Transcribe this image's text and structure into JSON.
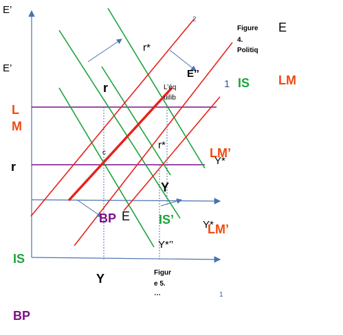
{
  "labels": {
    "e_prime_top": "E’",
    "two": "2",
    "figure4_line1": "Figure",
    "figure4_line2": "4.",
    "figure4_line3": "Politiq",
    "e_top_right": "E",
    "e_prime_mid": "E’",
    "r_star_top": "r*",
    "e_double_prime": "E’’",
    "one_right": "1",
    "is_right": "IS",
    "lm_right": "LM",
    "r_inner": "r",
    "equilibrium_line1": "L’éq",
    "equilibrium_line2": "uilib",
    "lm_left_l": "L",
    "lm_left_m": "M",
    "c_small": "c",
    "r_star_mid": "r*",
    "lm_prime_upper": "LM’",
    "y_star_upper": "Y*",
    "r_axis": "r",
    "y_inner": "Y",
    "bp_inner": "BP",
    "e_inner": "E",
    "is_prime": "IS’",
    "y_star_lower": "Y*",
    "lm_prime_lower": "LM’",
    "y_star_double": "Y*’’",
    "is_left": "IS",
    "y_axis": "Y",
    "figure5_line1": "Figur",
    "figure5_line2": "e 5.",
    "figure5_line3": "…",
    "one_bottom": "1",
    "bp_bottom": "BP"
  }
}
